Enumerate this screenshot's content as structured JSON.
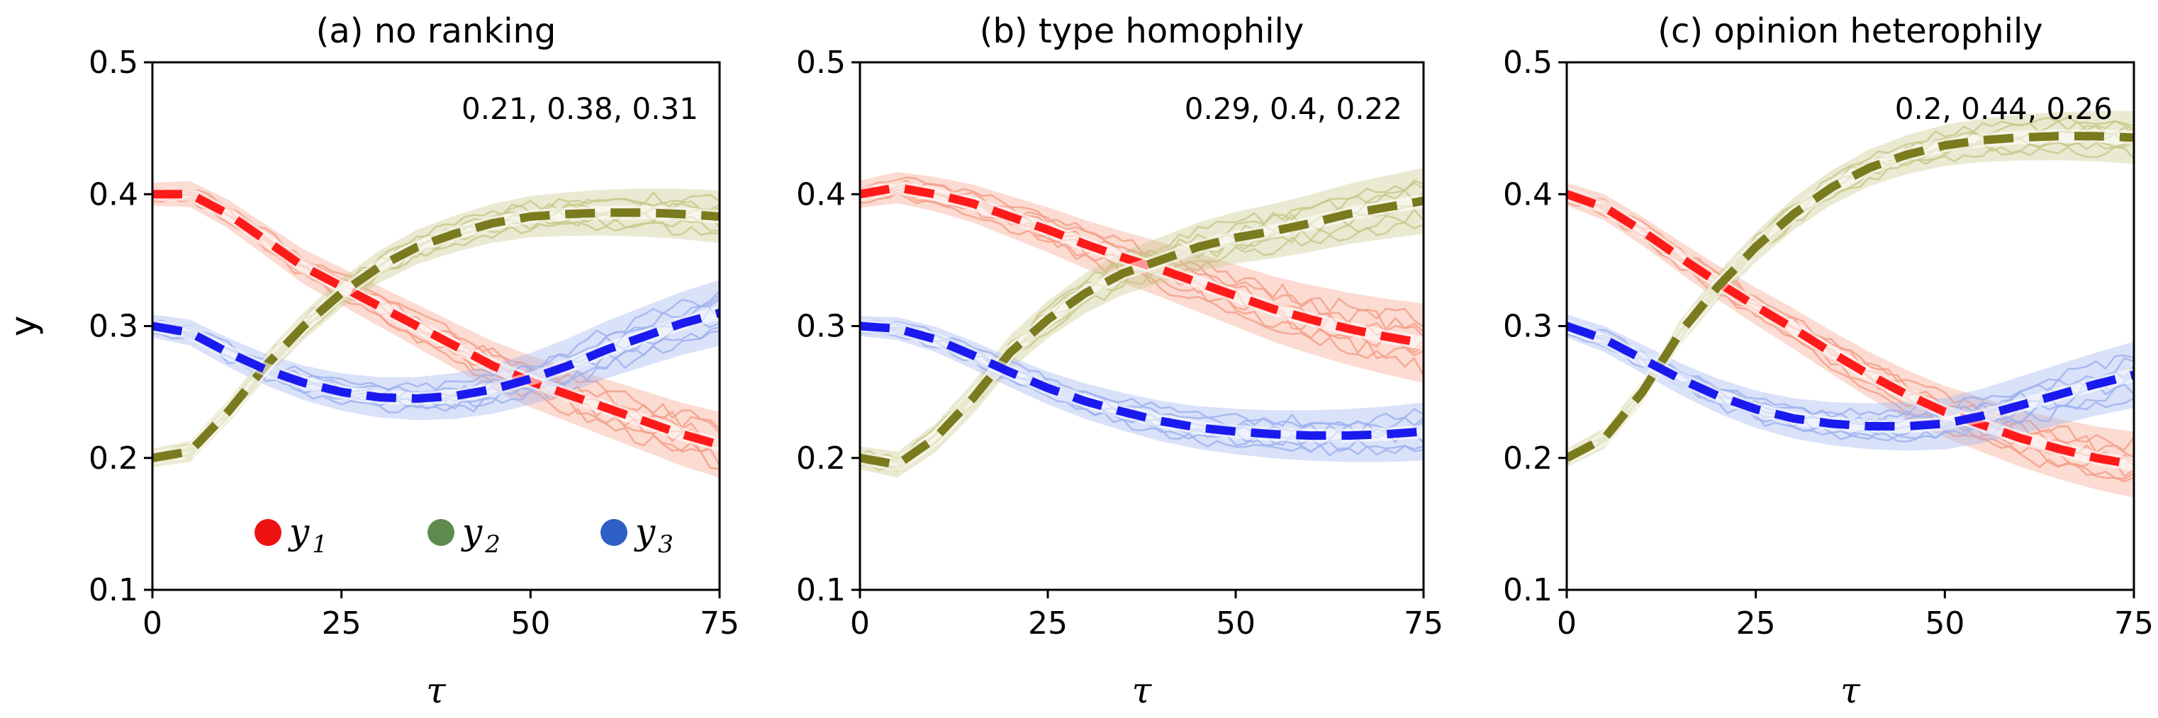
{
  "chart_data": [
    {
      "type": "line",
      "title": "(a) no ranking",
      "xlabel": "τ",
      "ylabel": "y",
      "xlim": [
        0,
        75
      ],
      "ylim": [
        0.1,
        0.5
      ],
      "xticks": [
        "0",
        "25",
        "50",
        "75"
      ],
      "yticks": [
        "0.1",
        "0.2",
        "0.3",
        "0.4",
        "0.5"
      ],
      "annotation": "0.21, 0.38, 0.31",
      "x": [
        0,
        5,
        10,
        15,
        20,
        25,
        30,
        35,
        40,
        45,
        50,
        55,
        60,
        65,
        70,
        75
      ],
      "series": [
        {
          "name": "y1",
          "color": "#ff1a1a",
          "band_color": "#f5a08a",
          "spread": 0.025,
          "values": [
            0.4,
            0.4,
            0.385,
            0.365,
            0.345,
            0.33,
            0.315,
            0.3,
            0.285,
            0.27,
            0.258,
            0.248,
            0.238,
            0.228,
            0.218,
            0.21
          ]
        },
        {
          "name": "y2",
          "color": "#7a7a1e",
          "band_color": "#c9c98c",
          "spread": 0.02,
          "values": [
            0.2,
            0.205,
            0.235,
            0.27,
            0.3,
            0.325,
            0.345,
            0.36,
            0.37,
            0.378,
            0.383,
            0.385,
            0.386,
            0.386,
            0.385,
            0.383
          ]
        },
        {
          "name": "y3",
          "color": "#1a1aee",
          "band_color": "#9fb3ef",
          "spread": 0.025,
          "values": [
            0.3,
            0.295,
            0.28,
            0.267,
            0.257,
            0.25,
            0.246,
            0.245,
            0.247,
            0.252,
            0.26,
            0.27,
            0.282,
            0.292,
            0.302,
            0.31
          ]
        }
      ]
    },
    {
      "type": "line",
      "title": "(b) type homophily",
      "xlabel": "τ",
      "ylabel": "",
      "xlim": [
        0,
        75
      ],
      "ylim": [
        0.1,
        0.5
      ],
      "xticks": [
        "0",
        "25",
        "50",
        "75"
      ],
      "yticks": [
        "0.1",
        "0.2",
        "0.3",
        "0.4",
        "0.5"
      ],
      "annotation": "0.29, 0.4, 0.22",
      "x": [
        0,
        5,
        10,
        15,
        20,
        25,
        30,
        35,
        40,
        45,
        50,
        55,
        60,
        65,
        70,
        75
      ],
      "series": [
        {
          "name": "y1",
          "color": "#ff1a1a",
          "band_color": "#f5a08a",
          "spread": 0.03,
          "values": [
            0.4,
            0.405,
            0.4,
            0.393,
            0.383,
            0.373,
            0.362,
            0.352,
            0.343,
            0.333,
            0.323,
            0.313,
            0.305,
            0.298,
            0.292,
            0.287
          ]
        },
        {
          "name": "y2",
          "color": "#7a7a1e",
          "band_color": "#c9c98c",
          "spread": 0.025,
          "values": [
            0.2,
            0.195,
            0.215,
            0.245,
            0.28,
            0.305,
            0.325,
            0.34,
            0.35,
            0.36,
            0.367,
            0.372,
            0.378,
            0.385,
            0.39,
            0.395
          ]
        },
        {
          "name": "y3",
          "color": "#1a1aee",
          "band_color": "#9fb3ef",
          "spread": 0.022,
          "values": [
            0.3,
            0.298,
            0.29,
            0.278,
            0.265,
            0.253,
            0.243,
            0.235,
            0.228,
            0.223,
            0.22,
            0.218,
            0.217,
            0.217,
            0.218,
            0.22
          ]
        }
      ]
    },
    {
      "type": "line",
      "title": "(c) opinion heterophily",
      "xlabel": "τ",
      "ylabel": "",
      "xlim": [
        0,
        75
      ],
      "ylim": [
        0.1,
        0.5
      ],
      "xticks": [
        "0",
        "25",
        "50",
        "75"
      ],
      "yticks": [
        "0.1",
        "0.2",
        "0.3",
        "0.4",
        "0.5"
      ],
      "annotation": "0.2, 0.44, 0.26",
      "x": [
        0,
        5,
        10,
        15,
        20,
        25,
        30,
        35,
        40,
        45,
        50,
        55,
        60,
        65,
        70,
        75
      ],
      "series": [
        {
          "name": "y1",
          "color": "#ff1a1a",
          "band_color": "#f5a08a",
          "spread": 0.025,
          "values": [
            0.4,
            0.39,
            0.372,
            0.352,
            0.333,
            0.315,
            0.298,
            0.28,
            0.263,
            0.248,
            0.235,
            0.225,
            0.215,
            0.207,
            0.2,
            0.195
          ]
        },
        {
          "name": "y2",
          "color": "#7a7a1e",
          "band_color": "#c9c98c",
          "spread": 0.02,
          "values": [
            0.2,
            0.215,
            0.25,
            0.295,
            0.33,
            0.36,
            0.385,
            0.405,
            0.42,
            0.43,
            0.437,
            0.441,
            0.443,
            0.444,
            0.444,
            0.443
          ]
        },
        {
          "name": "y3",
          "color": "#1a1aee",
          "band_color": "#9fb3ef",
          "spread": 0.025,
          "values": [
            0.3,
            0.29,
            0.275,
            0.26,
            0.247,
            0.237,
            0.23,
            0.226,
            0.224,
            0.224,
            0.226,
            0.232,
            0.24,
            0.248,
            0.256,
            0.263
          ]
        }
      ]
    }
  ],
  "legend": [
    {
      "sym": "y",
      "sub": "1",
      "color": "#ee1111"
    },
    {
      "sym": "y",
      "sub": "2",
      "color": "#5f8a4e"
    },
    {
      "sym": "y",
      "sub": "3",
      "color": "#2e5fc4"
    }
  ]
}
